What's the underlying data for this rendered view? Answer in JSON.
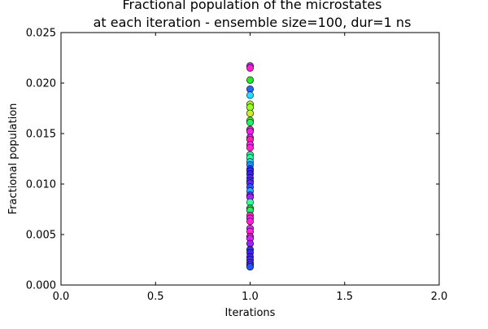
{
  "chart_data": {
    "type": "scatter",
    "title": [
      "Fractional population of the microstates",
      "at each iteration - ensemble size=100, dur=1 ns"
    ],
    "xlabel": "Iterations",
    "ylabel": "Fractional population",
    "xlim": [
      0.0,
      2.0
    ],
    "ylim": [
      0.0,
      0.025
    ],
    "xticks": [
      0.0,
      0.5,
      1.0,
      1.5,
      2.0
    ],
    "xtick_labels": [
      "0.0",
      "0.5",
      "1.0",
      "1.5",
      "2.0"
    ],
    "yticks": [
      0.0,
      0.005,
      0.01,
      0.015,
      0.02,
      0.025
    ],
    "ytick_labels": [
      "0.000",
      "0.005",
      "0.010",
      "0.015",
      "0.020",
      "0.025"
    ],
    "grid": false,
    "legend": "none",
    "points": [
      {
        "x": 1.0,
        "y": 0.0217,
        "color": "#cc22ff"
      },
      {
        "x": 1.0,
        "y": 0.0215,
        "color": "#ff22cc"
      },
      {
        "x": 1.0,
        "y": 0.0203,
        "color": "#22ee22"
      },
      {
        "x": 1.0,
        "y": 0.0194,
        "color": "#2266ff"
      },
      {
        "x": 1.0,
        "y": 0.0188,
        "color": "#22ddff"
      },
      {
        "x": 1.0,
        "y": 0.0179,
        "color": "#aaee22"
      },
      {
        "x": 1.0,
        "y": 0.0176,
        "color": "#99ff22"
      },
      {
        "x": 1.0,
        "y": 0.017,
        "color": "#ccee22"
      },
      {
        "x": 1.0,
        "y": 0.0163,
        "color": "#44ff22"
      },
      {
        "x": 1.0,
        "y": 0.0161,
        "color": "#22ee66"
      },
      {
        "x": 1.0,
        "y": 0.0154,
        "color": "#ff22cc"
      },
      {
        "x": 1.0,
        "y": 0.0152,
        "color": "#ee22ee"
      },
      {
        "x": 1.0,
        "y": 0.0146,
        "color": "#dd22dd"
      },
      {
        "x": 1.0,
        "y": 0.0144,
        "color": "#ff22aa"
      },
      {
        "x": 1.0,
        "y": 0.0139,
        "color": "#ee22ff"
      },
      {
        "x": 1.0,
        "y": 0.0136,
        "color": "#ff22cc"
      },
      {
        "x": 1.0,
        "y": 0.0129,
        "color": "#22ee88"
      },
      {
        "x": 1.0,
        "y": 0.0126,
        "color": "#22ffaa"
      },
      {
        "x": 1.0,
        "y": 0.0122,
        "color": "#22ccff"
      },
      {
        "x": 1.0,
        "y": 0.0119,
        "color": "#2288ff"
      },
      {
        "x": 1.0,
        "y": 0.0115,
        "color": "#2244ff"
      },
      {
        "x": 1.0,
        "y": 0.0113,
        "color": "#4422ff"
      },
      {
        "x": 1.0,
        "y": 0.011,
        "color": "#3322ee"
      },
      {
        "x": 1.0,
        "y": 0.0106,
        "color": "#5522ff"
      },
      {
        "x": 1.0,
        "y": 0.0103,
        "color": "#2244ff"
      },
      {
        "x": 1.0,
        "y": 0.0101,
        "color": "#6622ff"
      },
      {
        "x": 1.0,
        "y": 0.0097,
        "color": "#2255ff"
      },
      {
        "x": 1.0,
        "y": 0.0093,
        "color": "#22aaff"
      },
      {
        "x": 1.0,
        "y": 0.0089,
        "color": "#7722ff"
      },
      {
        "x": 1.0,
        "y": 0.0087,
        "color": "#aa22ff"
      },
      {
        "x": 1.0,
        "y": 0.0082,
        "color": "#33ff99"
      },
      {
        "x": 1.0,
        "y": 0.0076,
        "color": "#22cc44"
      },
      {
        "x": 1.0,
        "y": 0.0074,
        "color": "#22ee66"
      },
      {
        "x": 1.0,
        "y": 0.0069,
        "color": "#ff22bb"
      },
      {
        "x": 1.0,
        "y": 0.0066,
        "color": "#ee22ff"
      },
      {
        "x": 1.0,
        "y": 0.0063,
        "color": "#ff22cc"
      },
      {
        "x": 1.0,
        "y": 0.0056,
        "color": "#dd22ff"
      },
      {
        "x": 1.0,
        "y": 0.0053,
        "color": "#ff22dd"
      },
      {
        "x": 1.0,
        "y": 0.0048,
        "color": "#ee22cc"
      },
      {
        "x": 1.0,
        "y": 0.0046,
        "color": "#cc22ff"
      },
      {
        "x": 1.0,
        "y": 0.0041,
        "color": "#9922ff"
      },
      {
        "x": 1.0,
        "y": 0.0035,
        "color": "#2233ff"
      },
      {
        "x": 1.0,
        "y": 0.0032,
        "color": "#4422ee"
      },
      {
        "x": 1.0,
        "y": 0.0028,
        "color": "#3322ff"
      },
      {
        "x": 1.0,
        "y": 0.0025,
        "color": "#5522ff"
      },
      {
        "x": 1.0,
        "y": 0.0022,
        "color": "#2244ff"
      },
      {
        "x": 1.0,
        "y": 0.002,
        "color": "#6622ff"
      },
      {
        "x": 1.0,
        "y": 0.0018,
        "color": "#2255ee"
      }
    ]
  }
}
